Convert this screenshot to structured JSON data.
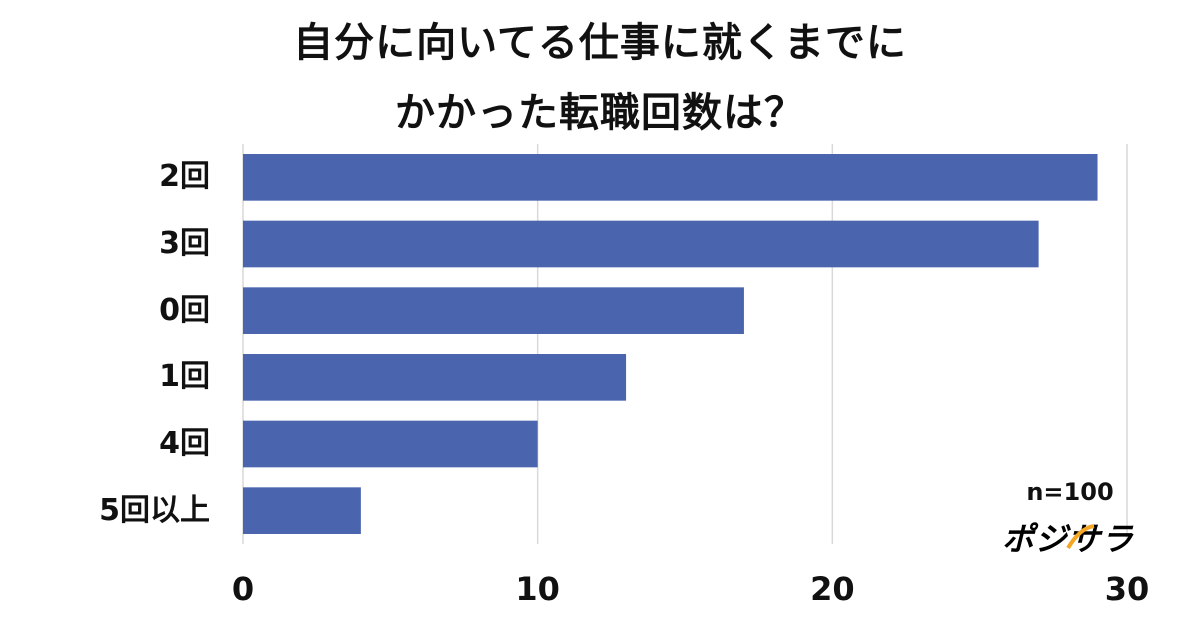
{
  "chart_data": {
    "type": "bar",
    "orientation": "horizontal",
    "title": [
      "自分に向いてる仕事に就くまでに",
      "かかった転職回数は？"
    ],
    "categories": [
      "2回",
      "3回",
      "0回",
      "1回",
      "4回",
      "5回以上"
    ],
    "values": [
      29,
      27,
      17,
      13,
      10,
      4
    ],
    "xlim": [
      0,
      30
    ],
    "xticks": [
      0,
      10,
      20,
      30
    ],
    "xtick_labels": [
      "0",
      "10",
      "20",
      "30"
    ],
    "grid": "vertical",
    "bar_color": "#4a65ae",
    "annotation": "n=100"
  },
  "brand": {
    "name": "ポジサラ",
    "color": "#2f55b8"
  }
}
